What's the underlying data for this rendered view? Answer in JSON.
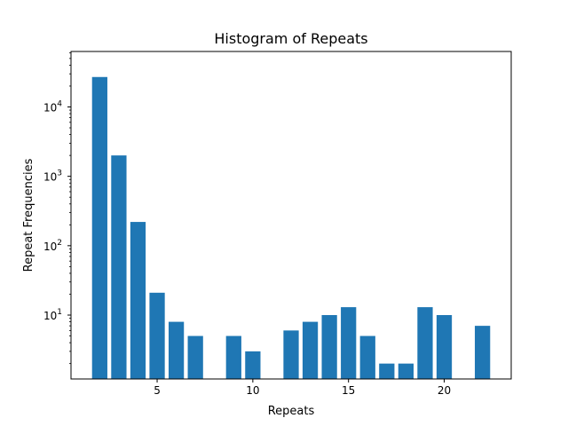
{
  "chart_data": {
    "type": "bar",
    "title": "Histogram of Repeats",
    "xlabel": "Repeats",
    "ylabel": "Repeat Frequencies",
    "yscale": "log",
    "xlim": [
      0.5,
      23.5
    ],
    "ylim": [
      1.2,
      63000
    ],
    "x_ticks": [
      5,
      10,
      15,
      20
    ],
    "y_ticks": [
      {
        "value": 10,
        "base": "10",
        "exp": "1"
      },
      {
        "value": 100,
        "base": "10",
        "exp": "2"
      },
      {
        "value": 1000,
        "base": "10",
        "exp": "3"
      },
      {
        "value": 10000,
        "base": "10",
        "exp": "4"
      }
    ],
    "bar_color": "#1f77b4",
    "grid": false,
    "bars": [
      {
        "x": 2,
        "value": 27000
      },
      {
        "x": 3,
        "value": 2000
      },
      {
        "x": 4,
        "value": 220
      },
      {
        "x": 5,
        "value": 21
      },
      {
        "x": 6,
        "value": 8
      },
      {
        "x": 7,
        "value": 5
      },
      {
        "x": 9,
        "value": 5
      },
      {
        "x": 10,
        "value": 3
      },
      {
        "x": 12,
        "value": 6
      },
      {
        "x": 13,
        "value": 8
      },
      {
        "x": 14,
        "value": 10
      },
      {
        "x": 15,
        "value": 13
      },
      {
        "x": 16,
        "value": 5
      },
      {
        "x": 17,
        "value": 2
      },
      {
        "x": 18,
        "value": 2
      },
      {
        "x": 19,
        "value": 13
      },
      {
        "x": 20,
        "value": 10
      },
      {
        "x": 22,
        "value": 7
      }
    ]
  }
}
